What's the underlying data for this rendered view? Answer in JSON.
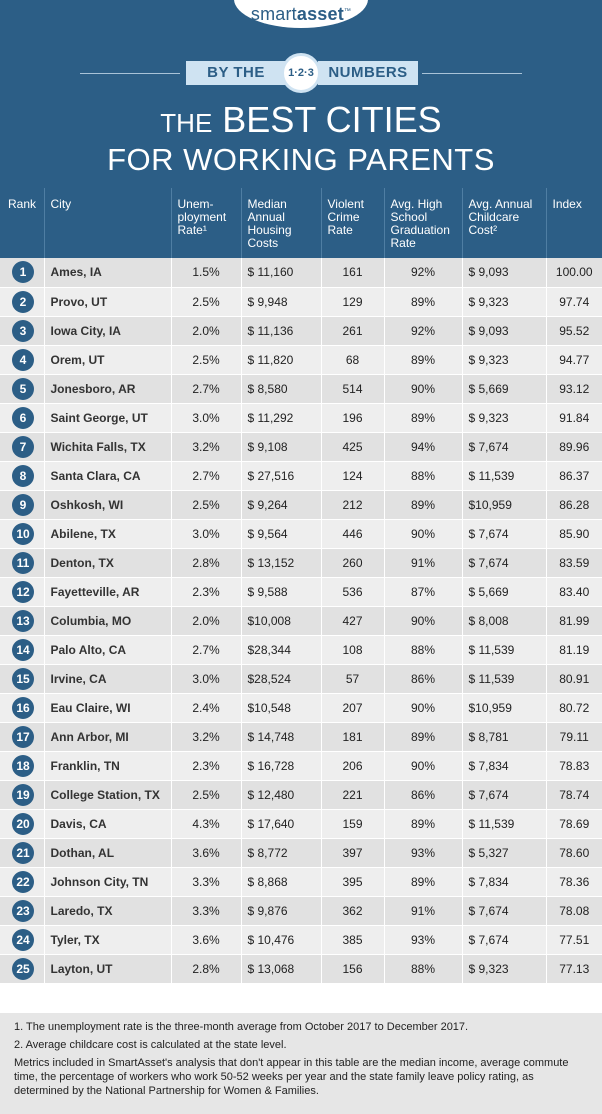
{
  "header": {
    "logo_regular": "smart",
    "logo_bold": "asset",
    "logo_tm": "™",
    "by_the": "BY THE",
    "badge": "1·2·3",
    "numbers": "NUMBERS",
    "title_the": "THE",
    "title_line1": "BEST CITIES",
    "title_line2": "FOR WORKING PARENTS"
  },
  "columns": {
    "rank": "Rank",
    "city": "City",
    "unemployment": "Unem-ployment Rate¹",
    "housing": "Median Annual Housing Costs",
    "crime": "Violent Crime Rate",
    "graduation": "Avg. High School Graduation Rate",
    "childcare": "Avg. Annual Childcare Cost²",
    "index": "Index"
  },
  "rows": [
    {
      "rank": "1",
      "city": "Ames, IA",
      "unemployment": "1.5%",
      "housing": "$  11,160",
      "crime": "161",
      "graduation": "92%",
      "childcare": "$  9,093",
      "index": "100.00"
    },
    {
      "rank": "2",
      "city": "Provo, UT",
      "unemployment": "2.5%",
      "housing": "$  9,948",
      "crime": "129",
      "graduation": "89%",
      "childcare": "$  9,323",
      "index": "97.74"
    },
    {
      "rank": "3",
      "city": "Iowa City, IA",
      "unemployment": "2.0%",
      "housing": "$  11,136",
      "crime": "261",
      "graduation": "92%",
      "childcare": "$  9,093",
      "index": "95.52"
    },
    {
      "rank": "4",
      "city": "Orem, UT",
      "unemployment": "2.5%",
      "housing": "$  11,820",
      "crime": "68",
      "graduation": "89%",
      "childcare": "$  9,323",
      "index": "94.77"
    },
    {
      "rank": "5",
      "city": "Jonesboro, AR",
      "unemployment": "2.7%",
      "housing": "$  8,580",
      "crime": "514",
      "graduation": "90%",
      "childcare": "$  5,669",
      "index": "93.12"
    },
    {
      "rank": "6",
      "city": "Saint George, UT",
      "unemployment": "3.0%",
      "housing": "$  11,292",
      "crime": "196",
      "graduation": "89%",
      "childcare": "$  9,323",
      "index": "91.84"
    },
    {
      "rank": "7",
      "city": "Wichita Falls, TX",
      "unemployment": "3.2%",
      "housing": "$  9,108",
      "crime": "425",
      "graduation": "94%",
      "childcare": "$  7,674",
      "index": "89.96"
    },
    {
      "rank": "8",
      "city": "Santa Clara, CA",
      "unemployment": "2.7%",
      "housing": "$  27,516",
      "crime": "124",
      "graduation": "88%",
      "childcare": "$  11,539",
      "index": "86.37"
    },
    {
      "rank": "9",
      "city": "Oshkosh, WI",
      "unemployment": "2.5%",
      "housing": "$  9,264",
      "crime": "212",
      "graduation": "89%",
      "childcare": "$10,959",
      "index": "86.28"
    },
    {
      "rank": "10",
      "city": "Abilene, TX",
      "unemployment": "3.0%",
      "housing": "$  9,564",
      "crime": "446",
      "graduation": "90%",
      "childcare": "$  7,674",
      "index": "85.90"
    },
    {
      "rank": "11",
      "city": "Denton, TX",
      "unemployment": "2.8%",
      "housing": "$  13,152",
      "crime": "260",
      "graduation": "91%",
      "childcare": "$  7,674",
      "index": "83.59"
    },
    {
      "rank": "12",
      "city": "Fayetteville, AR",
      "unemployment": "2.3%",
      "housing": "$  9,588",
      "crime": "536",
      "graduation": "87%",
      "childcare": "$  5,669",
      "index": "83.40"
    },
    {
      "rank": "13",
      "city": "Columbia, MO",
      "unemployment": "2.0%",
      "housing": "$10,008",
      "crime": "427",
      "graduation": "90%",
      "childcare": "$  8,008",
      "index": "81.99"
    },
    {
      "rank": "14",
      "city": "Palo Alto, CA",
      "unemployment": "2.7%",
      "housing": "$28,344",
      "crime": "108",
      "graduation": "88%",
      "childcare": "$  11,539",
      "index": "81.19"
    },
    {
      "rank": "15",
      "city": "Irvine, CA",
      "unemployment": "3.0%",
      "housing": "$28,524",
      "crime": "57",
      "graduation": "86%",
      "childcare": "$  11,539",
      "index": "80.91"
    },
    {
      "rank": "16",
      "city": "Eau Claire, WI",
      "unemployment": "2.4%",
      "housing": "$10,548",
      "crime": "207",
      "graduation": "90%",
      "childcare": "$10,959",
      "index": "80.72"
    },
    {
      "rank": "17",
      "city": "Ann Arbor, MI",
      "unemployment": "3.2%",
      "housing": "$  14,748",
      "crime": "181",
      "graduation": "89%",
      "childcare": "$  8,781",
      "index": "79.11"
    },
    {
      "rank": "18",
      "city": "Franklin, TN",
      "unemployment": "2.3%",
      "housing": "$  16,728",
      "crime": "206",
      "graduation": "90%",
      "childcare": "$  7,834",
      "index": "78.83"
    },
    {
      "rank": "19",
      "city": "College Station, TX",
      "unemployment": "2.5%",
      "housing": "$  12,480",
      "crime": "221",
      "graduation": "86%",
      "childcare": "$  7,674",
      "index": "78.74"
    },
    {
      "rank": "20",
      "city": "Davis, CA",
      "unemployment": "4.3%",
      "housing": "$  17,640",
      "crime": "159",
      "graduation": "89%",
      "childcare": "$  11,539",
      "index": "78.69"
    },
    {
      "rank": "21",
      "city": "Dothan, AL",
      "unemployment": "3.6%",
      "housing": "$  8,772",
      "crime": "397",
      "graduation": "93%",
      "childcare": "$  5,327",
      "index": "78.60"
    },
    {
      "rank": "22",
      "city": "Johnson City, TN",
      "unemployment": "3.3%",
      "housing": "$  8,868",
      "crime": "395",
      "graduation": "89%",
      "childcare": "$  7,834",
      "index": "78.36"
    },
    {
      "rank": "23",
      "city": "Laredo, TX",
      "unemployment": "3.3%",
      "housing": "$  9,876",
      "crime": "362",
      "graduation": "91%",
      "childcare": "$  7,674",
      "index": "78.08"
    },
    {
      "rank": "24",
      "city": "Tyler, TX",
      "unemployment": "3.6%",
      "housing": "$  10,476",
      "crime": "385",
      "graduation": "93%",
      "childcare": "$  7,674",
      "index": "77.51"
    },
    {
      "rank": "25",
      "city": "Layton, UT",
      "unemployment": "2.8%",
      "housing": "$  13,068",
      "crime": "156",
      "graduation": "88%",
      "childcare": "$  9,323",
      "index": "77.13"
    }
  ],
  "footnotes": {
    "note1": "1. The unemployment rate is the three-month average from October 2017 to December 2017.",
    "note2": "2. Average childcare cost is calculated at the state level.",
    "note3": "Metrics included in SmartAsset's analysis that don't appear in this table are the median income, average commute time, the percentage of workers who work 50-52 weeks per year and the state family leave policy rating, as determined by the National Partnership for Women & Families."
  }
}
